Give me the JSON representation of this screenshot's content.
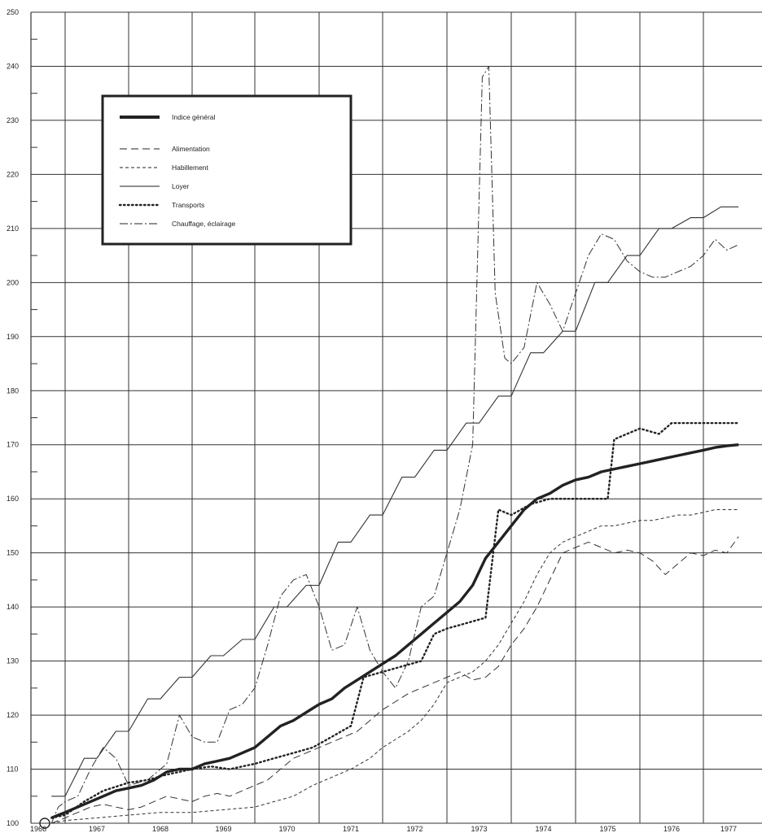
{
  "chart_data": {
    "type": "line",
    "title": "",
    "xlabel": "",
    "ylabel": "",
    "ylim": [
      100,
      250
    ],
    "xlim": [
      1966.5,
      1977.8
    ],
    "grid": true,
    "legend_position": "top-left",
    "y_ticks": [
      100,
      110,
      120,
      130,
      140,
      150,
      160,
      170,
      180,
      190,
      200,
      210,
      220,
      230,
      240,
      250
    ],
    "y_tick_labels": [
      "100",
      "110",
      "120",
      "130",
      "140",
      "150",
      "160",
      "170",
      "180",
      "190",
      "200",
      "210",
      "220",
      "230",
      "240",
      "250"
    ],
    "x_ticks": [
      1966,
      1967,
      1968,
      1969,
      1970,
      1971,
      1972,
      1973,
      1974,
      1975,
      1976,
      1977
    ],
    "x_tick_labels": [
      "1966",
      "1967",
      "1968",
      "1969",
      "1970",
      "1971",
      "1972",
      "1973",
      "1974",
      "1975",
      "1976",
      "1977"
    ],
    "series": [
      {
        "name": "Indice général",
        "style": "thick",
        "color": "#222222",
        "x": [
          1966.6,
          1966.8,
          1967.0,
          1967.2,
          1967.4,
          1967.6,
          1967.8,
          1968.0,
          1968.2,
          1968.4,
          1968.6,
          1968.8,
          1969.0,
          1969.2,
          1969.4,
          1969.6,
          1969.8,
          1970.0,
          1970.2,
          1970.4,
          1970.6,
          1970.8,
          1971.0,
          1971.2,
          1971.4,
          1971.6,
          1971.8,
          1972.0,
          1972.2,
          1972.4,
          1972.6,
          1972.8,
          1973.0,
          1973.2,
          1973.4,
          1973.6,
          1973.8,
          1974.0,
          1974.2,
          1974.4,
          1974.6,
          1974.8,
          1975.0,
          1975.2,
          1975.4,
          1975.6,
          1975.8,
          1976.0,
          1976.2,
          1976.4,
          1976.6,
          1976.8,
          1977.0,
          1977.2,
          1977.4,
          1977.6
        ],
        "values": [
          101,
          101.5,
          102,
          103,
          104,
          105,
          106,
          106.5,
          107,
          108,
          109.5,
          110,
          110,
          111,
          111.5,
          112,
          113,
          114,
          116,
          118,
          119,
          120.5,
          122,
          123,
          125,
          126.5,
          128,
          129.5,
          131,
          133,
          135,
          137,
          139,
          141,
          144,
          149,
          152,
          155,
          158,
          160,
          161,
          162.5,
          163.5,
          164,
          165,
          165.5,
          166,
          166.5,
          167,
          167.5,
          168,
          168.5,
          169,
          169.5,
          169.8,
          170
        ]
      },
      {
        "name": "Alimentation",
        "style": "dashed",
        "color": "#333333",
        "x": [
          1966.6,
          1966.8,
          1967.0,
          1967.2,
          1967.4,
          1967.6,
          1967.8,
          1968.0,
          1968.2,
          1968.4,
          1968.6,
          1968.8,
          1969.0,
          1969.2,
          1969.4,
          1969.6,
          1969.8,
          1970.0,
          1970.2,
          1970.4,
          1970.6,
          1970.8,
          1971.0,
          1971.2,
          1971.4,
          1971.6,
          1971.8,
          1972.0,
          1972.2,
          1972.4,
          1972.6,
          1972.8,
          1973.0,
          1973.2,
          1973.4,
          1973.6,
          1973.8,
          1974.0,
          1974.2,
          1974.4,
          1974.6,
          1974.8,
          1975.0,
          1975.2,
          1975.4,
          1975.6,
          1975.8,
          1976.0,
          1976.2,
          1976.4,
          1976.6,
          1976.8,
          1977.0,
          1977.2,
          1977.4,
          1977.6
        ],
        "values": [
          100,
          100.5,
          101,
          102,
          103,
          103.5,
          103,
          102.5,
          103,
          104,
          105,
          104.5,
          104,
          105,
          105.5,
          105,
          106,
          107,
          108,
          110,
          112,
          113,
          114,
          115,
          116,
          117,
          119,
          121,
          122.5,
          124,
          125,
          126,
          127,
          128,
          126.5,
          127,
          129,
          133,
          136,
          140,
          145,
          150,
          151,
          152,
          151,
          150,
          150.5,
          150,
          148.5,
          146,
          148,
          150,
          149.5,
          150.5,
          150,
          153
        ]
      },
      {
        "name": "Habillement",
        "style": "short-dashed",
        "color": "#333333",
        "x": [
          1966.6,
          1967.0,
          1967.5,
          1968.0,
          1968.5,
          1969.0,
          1969.5,
          1970.0,
          1970.3,
          1970.6,
          1970.9,
          1971.2,
          1971.5,
          1971.8,
          1972.0,
          1972.2,
          1972.4,
          1972.6,
          1972.8,
          1973.0,
          1973.2,
          1973.4,
          1973.6,
          1973.8,
          1974.0,
          1974.2,
          1974.4,
          1974.6,
          1974.8,
          1975.0,
          1975.2,
          1975.4,
          1975.6,
          1975.8,
          1976.0,
          1976.2,
          1976.4,
          1976.6,
          1976.8,
          1977.0,
          1977.2,
          1977.4,
          1977.6
        ],
        "values": [
          100,
          100.5,
          101,
          101.5,
          102,
          102,
          102.5,
          103,
          104,
          105,
          107,
          108.5,
          110,
          112,
          114,
          115.5,
          117,
          119,
          122,
          126,
          127,
          128,
          130,
          133,
          137,
          141,
          146,
          150,
          152,
          153,
          154,
          155,
          155,
          155.5,
          156,
          156,
          156.5,
          157,
          157,
          157.5,
          158,
          158,
          158
        ]
      },
      {
        "name": "Loyer",
        "style": "solid",
        "color": "#333333",
        "x": [
          1966.6,
          1966.8,
          1967.0,
          1967.3,
          1967.5,
          1967.8,
          1968.0,
          1968.3,
          1968.5,
          1968.8,
          1969.0,
          1969.3,
          1969.5,
          1969.8,
          1970.0,
          1970.3,
          1970.5,
          1970.8,
          1971.0,
          1971.3,
          1971.5,
          1971.8,
          1972.0,
          1972.3,
          1972.5,
          1972.8,
          1973.0,
          1973.3,
          1973.5,
          1973.8,
          1974.0,
          1974.3,
          1974.5,
          1974.8,
          1975.0,
          1975.3,
          1975.5,
          1975.8,
          1976.0,
          1976.3,
          1976.5,
          1976.8,
          1977.0,
          1977.3,
          1977.6
        ],
        "values": [
          105,
          105,
          105,
          112,
          112,
          117,
          117,
          123,
          123,
          127,
          127,
          131,
          131,
          134,
          134,
          140,
          140,
          144,
          144,
          152,
          152,
          157,
          157,
          164,
          164,
          169,
          169,
          174,
          174,
          179,
          179,
          187,
          187,
          191,
          191,
          200,
          200,
          205,
          205,
          210,
          210,
          212,
          212,
          214,
          214
        ]
      },
      {
        "name": "Transports",
        "style": "dotted",
        "color": "#222222",
        "x": [
          1966.6,
          1967.0,
          1967.3,
          1967.6,
          1968.0,
          1968.3,
          1968.6,
          1969.0,
          1969.3,
          1969.6,
          1970.0,
          1970.3,
          1970.6,
          1970.9,
          1971.2,
          1971.5,
          1971.7,
          1972.0,
          1972.3,
          1972.6,
          1972.8,
          1973.0,
          1973.3,
          1973.6,
          1973.8,
          1974.0,
          1974.3,
          1974.6,
          1974.9,
          1975.2,
          1975.5,
          1975.6,
          1975.8,
          1976.0,
          1976.3,
          1976.5,
          1976.8,
          1977.0,
          1977.3,
          1977.6
        ],
        "values": [
          101,
          101.5,
          104,
          106,
          107.5,
          108,
          109,
          110,
          110.5,
          110,
          111,
          112,
          113,
          114,
          116,
          118,
          127,
          128,
          129,
          130,
          135,
          136,
          137,
          138,
          158,
          157,
          159,
          160,
          160,
          160,
          160,
          171,
          172,
          173,
          172,
          174,
          174,
          174,
          174,
          174
        ]
      },
      {
        "name": "Chauffage, éclairage",
        "style": "dash-dot",
        "color": "#333333",
        "x": [
          1966.6,
          1966.8,
          1967.0,
          1967.2,
          1967.4,
          1967.6,
          1967.8,
          1968.0,
          1968.3,
          1968.6,
          1968.8,
          1969.0,
          1969.2,
          1969.4,
          1969.6,
          1969.8,
          1970.0,
          1970.2,
          1970.4,
          1970.6,
          1970.8,
          1971.0,
          1971.2,
          1971.4,
          1971.6,
          1971.8,
          1972.0,
          1972.2,
          1972.4,
          1972.6,
          1972.8,
          1973.0,
          1973.2,
          1973.4,
          1973.55,
          1973.65,
          1973.75,
          1973.9,
          1974.0,
          1974.2,
          1974.4,
          1974.6,
          1974.8,
          1975.0,
          1975.2,
          1975.4,
          1975.6,
          1975.8,
          1976.0,
          1976.2,
          1976.4,
          1976.6,
          1976.8,
          1977.0,
          1977.2,
          1977.4,
          1977.6
        ],
        "values": [
          100,
          103,
          104,
          105,
          110,
          114,
          112,
          107,
          108,
          111,
          120,
          116,
          115,
          115,
          121,
          122,
          125,
          133,
          142,
          145,
          146,
          140,
          132,
          133,
          140,
          132,
          128,
          125,
          130,
          140,
          142,
          150,
          158,
          170,
          238,
          240,
          198,
          186,
          185,
          188,
          200,
          196,
          191,
          198,
          205,
          209,
          208,
          204,
          202,
          201,
          201,
          202,
          203,
          205,
          208,
          206,
          207
        ]
      }
    ]
  },
  "legend": {
    "items": [
      {
        "label": "Indice général",
        "style": "thick"
      },
      {
        "label": "Alimentation",
        "style": "dashed"
      },
      {
        "label": "Habillement",
        "style": "short-dashed"
      },
      {
        "label": "Loyer",
        "style": "solid"
      },
      {
        "label": "Transports",
        "style": "dotted"
      },
      {
        "label": "Chauffage, éclairage",
        "style": "dash-dot"
      }
    ]
  }
}
